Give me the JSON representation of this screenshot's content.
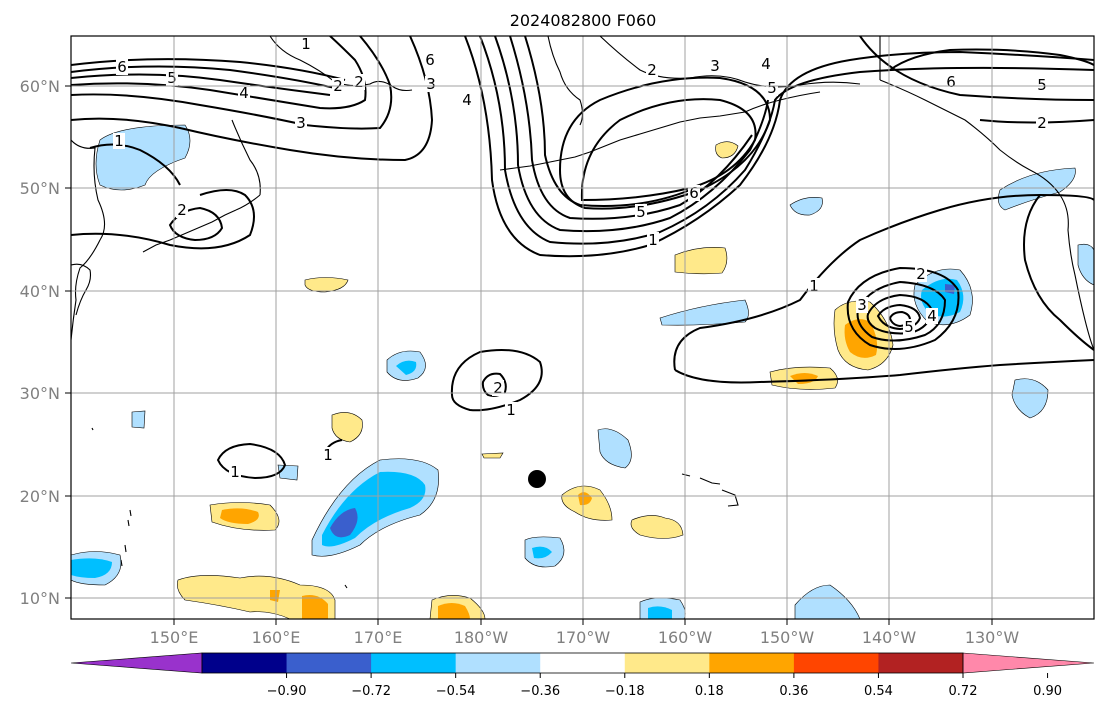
{
  "title": "2024082800 F060",
  "lat_labels": [
    "60°N",
    "50°N",
    "40°N",
    "30°N",
    "20°N",
    "10°N"
  ],
  "lon_labels": [
    "150°E",
    "160°E",
    "170°E",
    "180°W",
    "170°W",
    "160°W",
    "150°W",
    "140°W",
    "130°W"
  ],
  "colorbar": {
    "ticks": [
      "−0.90",
      "−0.72",
      "−0.54",
      "−0.36",
      "−0.18",
      "0.18",
      "0.36",
      "0.54",
      "0.72",
      "0.90"
    ],
    "colors": [
      "#9932cc",
      "#00008b",
      "#3a5fcd",
      "#00bfff",
      "#b0e0ff",
      "#ffffff",
      "#ffe98a",
      "#ffa500",
      "#ff4500",
      "#b22222",
      "#ff88aa"
    ]
  },
  "contour_labels": [
    "1",
    "1",
    "2",
    "2",
    "3",
    "3",
    "4",
    "4",
    "5",
    "5",
    "6",
    "6",
    "6",
    "2",
    "3",
    "4",
    "5",
    "6",
    "1",
    "1",
    "2",
    "3",
    "4",
    "5",
    "6",
    "2",
    "2",
    "1",
    "1",
    "1",
    "2",
    "5"
  ]
}
